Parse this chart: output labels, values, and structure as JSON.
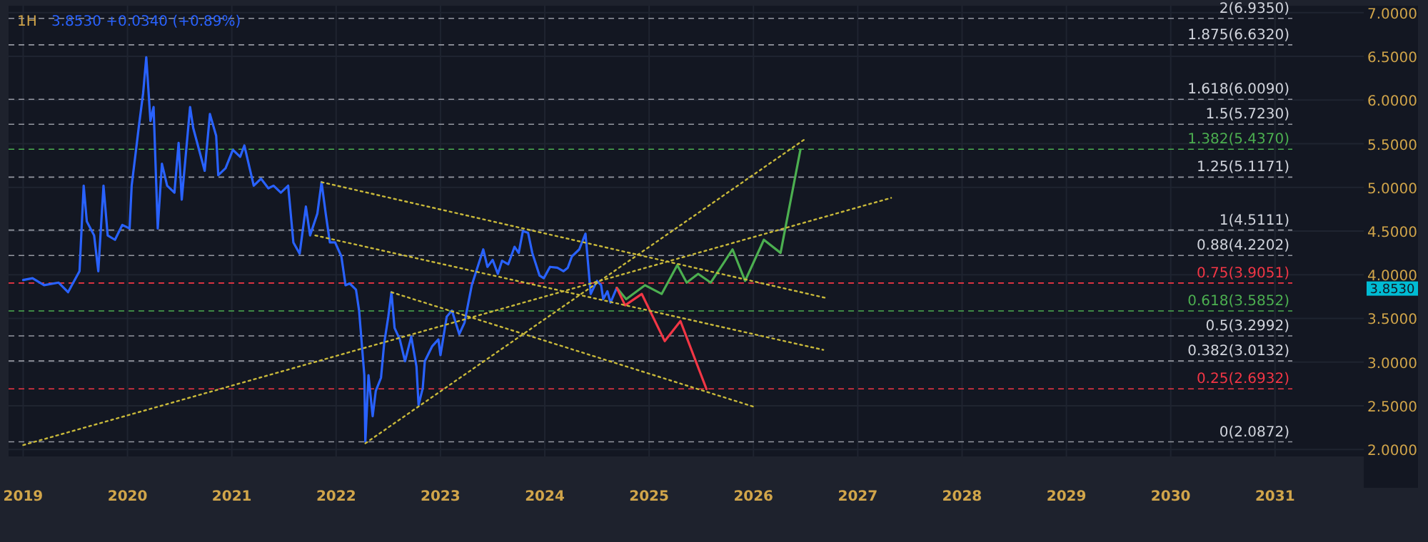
{
  "chart_data": {
    "type": "line",
    "title": "1H",
    "subtitle": "3.8530  +0.0340 (+0.89%)",
    "xlim": [
      2018.86,
      2031.85
    ],
    "xticks": [
      2019,
      2020,
      2021,
      2022,
      2023,
      2024,
      2025,
      2026,
      2027,
      2028,
      2029,
      2030,
      2031
    ],
    "ylim": [
      1.92,
      7.08
    ],
    "yticks": [
      {
        "value": 2,
        "label": "2.0000"
      },
      {
        "value": 2.5,
        "label": "2.5000"
      },
      {
        "value": 3,
        "label": "3.0000"
      },
      {
        "value": 3.5,
        "label": "3.5000"
      },
      {
        "value": 4,
        "label": "4.0000"
      },
      {
        "value": 4.5,
        "label": "4.5000"
      },
      {
        "value": 5,
        "label": "5.0000"
      },
      {
        "value": 5.5,
        "label": "5.5000"
      },
      {
        "value": 6,
        "label": "6.0000"
      },
      {
        "value": 6.5,
        "label": "6.5000"
      },
      {
        "value": 7,
        "label": "7.0000"
      }
    ],
    "grid": true,
    "series": [
      {
        "color": "#2962ff",
        "line_style": "solid",
        "x": [
          2019.0,
          2019.09,
          2019.2,
          2019.34,
          2019.43,
          2019.54,
          2019.58,
          2019.61,
          2019.68,
          2019.72,
          2019.77,
          2019.81,
          2019.88,
          2019.95,
          2020.02,
          2020.04,
          2020.09,
          2020.11,
          2020.15,
          2020.18,
          2020.22,
          2020.25,
          2020.29,
          2020.33,
          2020.38,
          2020.45,
          2020.49,
          2020.52,
          2020.6,
          2020.63,
          2020.74,
          2020.79,
          2020.85,
          2020.87,
          2020.94,
          2021.01,
          2021.08,
          2021.12,
          2021.21,
          2021.28,
          2021.35,
          2021.4,
          2021.47,
          2021.54,
          2021.59,
          2021.65,
          2021.71,
          2021.75,
          2021.82,
          2021.86,
          2021.9,
          2021.94,
          2021.99,
          2022.05,
          2022.09,
          2022.13,
          2022.19,
          2022.22,
          2022.27,
          2022.28,
          2022.31,
          2022.35,
          2022.38,
          2022.43,
          2022.46,
          2022.5,
          2022.53,
          2022.56,
          2022.61,
          2022.66,
          2022.72,
          2022.77,
          2022.79,
          2022.83,
          2022.85,
          2022.92,
          2022.98,
          2023.0,
          2023.06,
          2023.11,
          2023.18,
          2023.23,
          2023.3,
          2023.41,
          2023.45,
          2023.5,
          2023.55,
          2023.59,
          2023.65,
          2023.71,
          2023.75,
          2023.79,
          2023.84,
          2023.88,
          2023.95,
          2023.99,
          2024.05,
          2024.12,
          2024.18,
          2024.22,
          2024.26,
          2024.33,
          2024.39,
          2024.44,
          2024.5,
          2024.54,
          2024.56,
          2024.6,
          2024.63,
          2024.69
        ],
        "values": [
          3.94,
          3.96,
          3.88,
          3.91,
          3.8,
          4.04,
          5.02,
          4.61,
          4.45,
          4.04,
          5.02,
          4.45,
          4.4,
          4.57,
          4.53,
          5.02,
          5.51,
          5.71,
          6.08,
          6.49,
          5.76,
          5.92,
          4.53,
          5.27,
          5.02,
          4.94,
          5.51,
          4.86,
          5.92,
          5.68,
          5.19,
          5.84,
          5.59,
          5.14,
          5.22,
          5.43,
          5.35,
          5.48,
          5.02,
          5.1,
          4.99,
          5.02,
          4.94,
          5.02,
          4.37,
          4.24,
          4.78,
          4.45,
          4.7,
          5.06,
          4.7,
          4.37,
          4.37,
          4.21,
          3.88,
          3.9,
          3.83,
          3.59,
          2.85,
          2.09,
          2.85,
          2.38,
          2.67,
          2.82,
          3.21,
          3.52,
          3.8,
          3.39,
          3.26,
          3.01,
          3.29,
          2.95,
          2.51,
          2.7,
          3.01,
          3.18,
          3.26,
          3.08,
          3.52,
          3.59,
          3.32,
          3.45,
          3.88,
          4.29,
          4.09,
          4.17,
          4.01,
          4.16,
          4.12,
          4.32,
          4.25,
          4.5,
          4.48,
          4.25,
          3.99,
          3.96,
          4.09,
          4.08,
          4.04,
          4.08,
          4.21,
          4.29,
          4.47,
          3.78,
          3.93,
          3.88,
          3.72,
          3.81,
          3.68,
          3.85
        ]
      },
      {
        "color": "#4caf50",
        "line_style": "solid",
        "x": [
          2024.69,
          2024.78,
          2024.96,
          2025.12,
          2025.27,
          2025.36,
          2025.47,
          2025.59,
          2025.8,
          2025.92,
          2026.1,
          2026.26,
          2026.45
        ],
        "values": [
          3.85,
          3.72,
          3.88,
          3.78,
          4.11,
          3.91,
          4.01,
          3.91,
          4.29,
          3.93,
          4.4,
          4.25,
          5.43
        ]
      },
      {
        "color": "#f23645",
        "line_style": "solid",
        "x": [
          2024.69,
          2024.77,
          2024.93,
          2025.15,
          2025.3,
          2025.55
        ],
        "values": [
          3.85,
          3.65,
          3.78,
          3.24,
          3.47,
          2.69
        ]
      },
      {
        "color": "#c9b93a",
        "line_style": "dotted",
        "x": [
          2019.0,
          2027.32
        ],
        "values": [
          2.05,
          4.88
        ]
      },
      {
        "color": "#c9b93a",
        "line_style": "dotted",
        "x": [
          2022.28,
          2026.49
        ],
        "values": [
          2.07,
          5.55
        ]
      },
      {
        "color": "#c9b93a",
        "line_style": "dotted",
        "x": [
          2021.86,
          2026.71
        ],
        "values": [
          5.06,
          3.73
        ]
      },
      {
        "color": "#c9b93a",
        "line_style": "dotted",
        "x": [
          2021.8,
          2026.67
        ],
        "values": [
          4.45,
          3.14
        ]
      },
      {
        "color": "#c9b93a",
        "line_style": "dotted",
        "x": [
          2022.53,
          2026.0
        ],
        "values": [
          3.8,
          2.49
        ]
      }
    ],
    "ref_lines": [
      {
        "axis": "y",
        "value": 6.935,
        "label": "2(6.9350)",
        "color": "#9598a1",
        "line_style": "dashed"
      },
      {
        "axis": "y",
        "value": 6.632,
        "label": "1.875(6.6320)",
        "color": "#9598a1",
        "line_style": "dashed"
      },
      {
        "axis": "y",
        "value": 6.009,
        "label": "1.618(6.0090)",
        "color": "#9598a1",
        "line_style": "dashed"
      },
      {
        "axis": "y",
        "value": 5.723,
        "label": "1.5(5.7230)",
        "color": "#9598a1",
        "line_style": "dashed"
      },
      {
        "axis": "y",
        "value": 5.437,
        "label": "1.382(5.4370)",
        "color": "#4caf50",
        "line_style": "dashed"
      },
      {
        "axis": "y",
        "value": 5.1171,
        "label": "1.25(5.1171)",
        "color": "#9598a1",
        "line_style": "dashed"
      },
      {
        "axis": "y",
        "value": 4.5111,
        "label": "1(4.5111)",
        "color": "#9598a1",
        "line_style": "dashed"
      },
      {
        "axis": "y",
        "value": 4.2202,
        "label": "0.88(4.2202)",
        "color": "#9598a1",
        "line_style": "dashed"
      },
      {
        "axis": "y",
        "value": 3.9051,
        "label": "0.75(3.9051)",
        "color": "#f23645",
        "line_style": "dashed"
      },
      {
        "axis": "y",
        "value": 3.5852,
        "label": "0.618(3.5852)",
        "color": "#4caf50",
        "line_style": "dashed"
      },
      {
        "axis": "y",
        "value": 3.2992,
        "label": "0.5(3.2992)",
        "color": "#9598a1",
        "line_style": "dashed"
      },
      {
        "axis": "y",
        "value": 3.0132,
        "label": "0.382(3.0132)",
        "color": "#9598a1",
        "line_style": "dashed"
      },
      {
        "axis": "y",
        "value": 2.6932,
        "label": "0.25(2.6932)",
        "color": "#f23645",
        "line_style": "dashed"
      },
      {
        "axis": "y",
        "value": 2.0872,
        "label": "0(2.0872)",
        "color": "#9598a1",
        "line_style": "dashed"
      }
    ],
    "annotations": [
      "3.8530"
    ]
  }
}
